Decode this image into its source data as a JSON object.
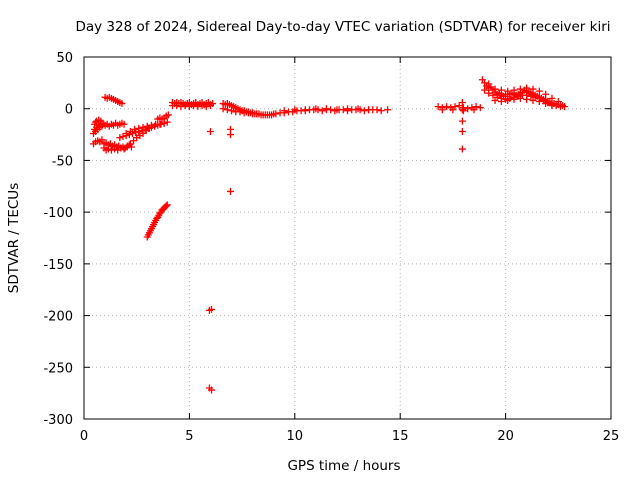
{
  "chart_data": {
    "type": "scatter",
    "title": "Day 328 of 2024, Sidereal Day-to-day VTEC variation (SDTVAR) for receiver kiri",
    "xlabel": "GPS time / hours",
    "ylabel": "SDTVAR / TECUs",
    "xlim": [
      0,
      25
    ],
    "ylim": [
      -300,
      50
    ],
    "x_ticks": [
      0,
      5,
      10,
      15,
      20,
      25
    ],
    "y_ticks": [
      50,
      0,
      -50,
      -100,
      -150,
      -200,
      -250,
      -300
    ],
    "grid": true,
    "marker": "plus",
    "color": "#ff0000",
    "series": [
      {
        "points": [
          [
            0.45,
            -24
          ],
          [
            0.5,
            -20
          ],
          [
            0.55,
            -22
          ],
          [
            0.6,
            -18
          ],
          [
            0.65,
            -20
          ],
          [
            0.7,
            -16
          ],
          [
            0.75,
            -18
          ],
          [
            0.8,
            -15
          ],
          [
            0.85,
            -17
          ],
          [
            0.9,
            -14
          ],
          [
            1.0,
            -16
          ],
          [
            1.1,
            -15
          ],
          [
            1.2,
            -17
          ],
          [
            1.3,
            -15
          ],
          [
            1.4,
            -16
          ],
          [
            1.5,
            -14
          ],
          [
            1.6,
            -16
          ],
          [
            1.7,
            -15
          ],
          [
            1.8,
            -14
          ],
          [
            1.9,
            -15
          ],
          [
            0.5,
            -15
          ],
          [
            0.55,
            -13
          ],
          [
            0.6,
            -12
          ],
          [
            0.7,
            -11
          ],
          [
            0.8,
            -12
          ],
          [
            0.45,
            -34
          ],
          [
            0.55,
            -32
          ],
          [
            0.65,
            -31
          ],
          [
            0.75,
            -32
          ],
          [
            0.85,
            -30
          ],
          [
            0.95,
            -34
          ],
          [
            1.05,
            -33
          ],
          [
            1.15,
            -35
          ],
          [
            1.25,
            -34
          ],
          [
            1.35,
            -36
          ],
          [
            1.45,
            -35
          ],
          [
            1.55,
            -37
          ],
          [
            1.65,
            -36
          ],
          [
            1.75,
            -38
          ],
          [
            1.85,
            -37
          ],
          [
            1.95,
            -38
          ],
          [
            2.05,
            -36
          ],
          [
            2.15,
            -35
          ],
          [
            2.25,
            -37
          ],
          [
            0.95,
            -38
          ],
          [
            1.05,
            -40
          ],
          [
            1.15,
            -39
          ],
          [
            1.3,
            -40
          ],
          [
            1.45,
            -39
          ],
          [
            1.6,
            -40
          ],
          [
            1.75,
            -38
          ],
          [
            1.9,
            -39
          ],
          [
            2.05,
            -37
          ],
          [
            2.2,
            -34
          ],
          [
            2.35,
            -31
          ],
          [
            2.5,
            -28
          ],
          [
            2.65,
            -26
          ],
          [
            2.8,
            -24
          ],
          [
            2.95,
            -21
          ],
          [
            3.1,
            -19
          ],
          [
            1.7,
            -28
          ],
          [
            1.85,
            -27
          ],
          [
            2.0,
            -26
          ],
          [
            2.15,
            -25
          ],
          [
            2.3,
            -24
          ],
          [
            2.45,
            -23
          ],
          [
            2.6,
            -22
          ],
          [
            2.75,
            -21
          ],
          [
            2.9,
            -20
          ],
          [
            3.05,
            -19
          ],
          [
            3.2,
            -18
          ],
          [
            3.35,
            -17
          ],
          [
            3.5,
            -16
          ],
          [
            3.65,
            -15
          ],
          [
            3.8,
            -14
          ],
          [
            3.95,
            -13
          ],
          [
            2.0,
            -24
          ],
          [
            2.2,
            -22
          ],
          [
            2.4,
            -20
          ],
          [
            2.6,
            -19
          ],
          [
            2.8,
            -18
          ],
          [
            3.0,
            -17
          ],
          [
            3.2,
            -16
          ],
          [
            3.4,
            -15
          ],
          [
            3.6,
            -15
          ],
          [
            3.8,
            -14
          ],
          [
            3.5,
            -10
          ],
          [
            3.6,
            -9
          ],
          [
            3.7,
            -10
          ],
          [
            3.8,
            -9
          ],
          [
            3.9,
            -7
          ],
          [
            4.0,
            -6
          ],
          [
            1.0,
            11
          ],
          [
            1.1,
            10
          ],
          [
            1.2,
            11
          ],
          [
            1.3,
            10
          ],
          [
            1.4,
            9
          ],
          [
            1.5,
            8
          ],
          [
            1.6,
            7
          ],
          [
            1.7,
            6
          ],
          [
            1.8,
            5
          ],
          [
            3.0,
            -124
          ],
          [
            3.05,
            -122
          ],
          [
            3.1,
            -120
          ],
          [
            3.15,
            -118
          ],
          [
            3.2,
            -116
          ],
          [
            3.25,
            -114
          ],
          [
            3.3,
            -112
          ],
          [
            3.35,
            -110
          ],
          [
            3.4,
            -108
          ],
          [
            3.45,
            -106
          ],
          [
            3.5,
            -105
          ],
          [
            3.55,
            -103
          ],
          [
            3.6,
            -101
          ],
          [
            3.65,
            -100
          ],
          [
            3.7,
            -98
          ],
          [
            3.75,
            -97
          ],
          [
            3.8,
            -96
          ],
          [
            3.85,
            -95
          ],
          [
            3.9,
            -94
          ],
          [
            3.95,
            -93
          ],
          [
            4.2,
            6
          ],
          [
            4.3,
            5
          ],
          [
            4.4,
            6
          ],
          [
            4.5,
            5
          ],
          [
            4.6,
            6
          ],
          [
            4.7,
            5
          ],
          [
            4.8,
            4
          ],
          [
            4.9,
            5
          ],
          [
            5.0,
            6
          ],
          [
            5.1,
            4
          ],
          [
            5.2,
            5
          ],
          [
            5.3,
            6
          ],
          [
            5.4,
            4
          ],
          [
            5.5,
            5
          ],
          [
            5.6,
            6
          ],
          [
            5.7,
            4
          ],
          [
            5.8,
            5
          ],
          [
            5.9,
            6
          ],
          [
            6.0,
            4
          ],
          [
            6.1,
            5
          ],
          [
            4.2,
            3
          ],
          [
            4.4,
            3
          ],
          [
            4.6,
            2
          ],
          [
            4.8,
            3
          ],
          [
            5.0,
            2
          ],
          [
            5.2,
            3
          ],
          [
            5.4,
            2
          ],
          [
            5.6,
            3
          ],
          [
            5.8,
            2
          ],
          [
            6.0,
            3
          ],
          [
            6.0,
            -22
          ],
          [
            6.95,
            -20
          ],
          [
            6.95,
            -25
          ],
          [
            6.95,
            -80
          ],
          [
            5.95,
            -195
          ],
          [
            6.05,
            -194
          ],
          [
            5.95,
            -270
          ],
          [
            6.05,
            -272
          ],
          [
            6.6,
            5
          ],
          [
            6.7,
            4
          ],
          [
            6.8,
            5
          ],
          [
            6.9,
            4
          ],
          [
            7.0,
            3
          ],
          [
            7.1,
            2
          ],
          [
            7.2,
            1
          ],
          [
            7.3,
            0
          ],
          [
            7.4,
            -1
          ],
          [
            7.5,
            -2
          ],
          [
            7.6,
            -2
          ],
          [
            7.7,
            -3
          ],
          [
            7.8,
            -3
          ],
          [
            7.9,
            -4
          ],
          [
            8.0,
            -4
          ],
          [
            8.1,
            -5
          ],
          [
            8.2,
            -5
          ],
          [
            8.3,
            -5
          ],
          [
            8.4,
            -6
          ],
          [
            8.5,
            -6
          ],
          [
            8.6,
            -6
          ],
          [
            8.7,
            -6
          ],
          [
            8.8,
            -6
          ],
          [
            8.9,
            -6
          ],
          [
            9.0,
            -5
          ],
          [
            6.6,
            0
          ],
          [
            6.8,
            -1
          ],
          [
            7.0,
            -2
          ],
          [
            7.2,
            -3
          ],
          [
            7.4,
            -3
          ],
          [
            7.6,
            -4
          ],
          [
            7.8,
            -4
          ],
          [
            8.0,
            -5
          ],
          [
            8.2,
            -5
          ],
          [
            9.1,
            -5
          ],
          [
            9.3,
            -4
          ],
          [
            9.5,
            -4
          ],
          [
            9.7,
            -3
          ],
          [
            9.9,
            -3
          ],
          [
            10.1,
            -2
          ],
          [
            10.3,
            -2
          ],
          [
            10.5,
            -2
          ],
          [
            10.7,
            -1
          ],
          [
            10.9,
            -1
          ],
          [
            11.1,
            -1
          ],
          [
            11.3,
            -2
          ],
          [
            11.5,
            -1
          ],
          [
            11.7,
            -1
          ],
          [
            11.9,
            -2
          ],
          [
            12.1,
            -1
          ],
          [
            12.3,
            -1
          ],
          [
            12.5,
            -2
          ],
          [
            12.7,
            -1
          ],
          [
            12.9,
            -1
          ],
          [
            13.1,
            -1
          ],
          [
            13.3,
            -2
          ],
          [
            13.5,
            -1
          ],
          [
            13.7,
            -1
          ],
          [
            13.9,
            -1
          ],
          [
            14.1,
            -2
          ],
          [
            14.4,
            -1
          ],
          [
            9.5,
            -2
          ],
          [
            10.0,
            -1
          ],
          [
            10.5,
            -1
          ],
          [
            11.0,
            0
          ],
          [
            11.5,
            0
          ],
          [
            12.0,
            -1
          ],
          [
            12.5,
            0
          ],
          [
            13.0,
            0
          ],
          [
            13.5,
            -1
          ],
          [
            16.8,
            2
          ],
          [
            17.0,
            1
          ],
          [
            17.2,
            2
          ],
          [
            17.4,
            1
          ],
          [
            17.6,
            2
          ],
          [
            17.8,
            3
          ],
          [
            18.0,
            1
          ],
          [
            18.2,
            0
          ],
          [
            18.4,
            1
          ],
          [
            18.6,
            2
          ],
          [
            18.8,
            1
          ],
          [
            17.0,
            -1
          ],
          [
            17.5,
            -1
          ],
          [
            18.0,
            -2
          ],
          [
            18.5,
            -1
          ],
          [
            17.95,
            6
          ],
          [
            17.95,
            -1
          ],
          [
            17.95,
            -12
          ],
          [
            17.95,
            -22
          ],
          [
            17.95,
            -39
          ],
          [
            18.9,
            28
          ],
          [
            19.0,
            25
          ],
          [
            19.1,
            22
          ],
          [
            19.2,
            24
          ],
          [
            19.3,
            21
          ],
          [
            19.4,
            18
          ],
          [
            19.5,
            16
          ],
          [
            19.6,
            14
          ],
          [
            19.7,
            15
          ],
          [
            19.8,
            13
          ],
          [
            19.9,
            12
          ],
          [
            20.0,
            14
          ],
          [
            20.1,
            12
          ],
          [
            20.2,
            14
          ],
          [
            20.3,
            15
          ],
          [
            20.4,
            14
          ],
          [
            20.5,
            13
          ],
          [
            20.6,
            14
          ],
          [
            20.7,
            15
          ],
          [
            20.8,
            16
          ],
          [
            20.9,
            18
          ],
          [
            21.0,
            17
          ],
          [
            21.1,
            16
          ],
          [
            21.2,
            15
          ],
          [
            21.3,
            14
          ],
          [
            21.4,
            13
          ],
          [
            21.5,
            12
          ],
          [
            21.6,
            11
          ],
          [
            21.7,
            10
          ],
          [
            21.8,
            9
          ],
          [
            21.9,
            8
          ],
          [
            22.0,
            7
          ],
          [
            22.1,
            6
          ],
          [
            22.2,
            5
          ],
          [
            22.3,
            5
          ],
          [
            22.4,
            4
          ],
          [
            22.5,
            4
          ],
          [
            22.6,
            4
          ],
          [
            22.7,
            3
          ],
          [
            19.0,
            18
          ],
          [
            19.2,
            15
          ],
          [
            19.4,
            13
          ],
          [
            19.6,
            11
          ],
          [
            19.8,
            10
          ],
          [
            20.0,
            9
          ],
          [
            20.2,
            10
          ],
          [
            20.4,
            11
          ],
          [
            20.6,
            12
          ],
          [
            20.8,
            13
          ],
          [
            21.0,
            13
          ],
          [
            21.2,
            12
          ],
          [
            21.4,
            11
          ],
          [
            21.6,
            10
          ],
          [
            21.8,
            8
          ],
          [
            22.0,
            6
          ],
          [
            22.2,
            4
          ],
          [
            22.4,
            3
          ],
          [
            22.6,
            2
          ],
          [
            22.8,
            2
          ],
          [
            19.2,
            20
          ],
          [
            19.5,
            19
          ],
          [
            19.8,
            18
          ],
          [
            20.1,
            17
          ],
          [
            20.4,
            18
          ],
          [
            20.7,
            19
          ],
          [
            21.0,
            20
          ],
          [
            21.3,
            19
          ],
          [
            21.6,
            17
          ],
          [
            21.9,
            14
          ],
          [
            22.2,
            10
          ],
          [
            22.5,
            7
          ],
          [
            19.5,
            8
          ],
          [
            19.8,
            7
          ],
          [
            20.1,
            8
          ],
          [
            20.4,
            9
          ],
          [
            20.7,
            10
          ],
          [
            21.0,
            9
          ],
          [
            21.3,
            8
          ],
          [
            21.6,
            7
          ],
          [
            21.9,
            5
          ],
          [
            22.2,
            3
          ]
        ]
      }
    ]
  }
}
